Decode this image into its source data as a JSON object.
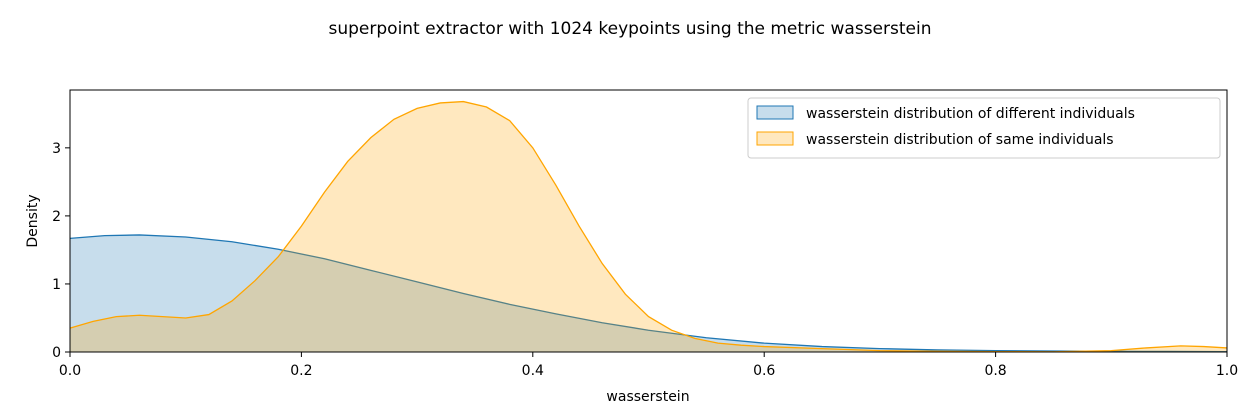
{
  "chart_data": {
    "type": "area",
    "title": "superpoint extractor with 1024 keypoints using the metric wasserstein",
    "xlabel": "wasserstein",
    "ylabel": "Density",
    "xlim": [
      0.0,
      1.0
    ],
    "ylim": [
      0.0,
      3.85
    ],
    "x_ticks": [
      "0.0",
      "0.2",
      "0.4",
      "0.6",
      "0.8",
      "1.0"
    ],
    "y_ticks": [
      "0",
      "1",
      "2",
      "3"
    ],
    "grid": false,
    "legend_position": "top-right",
    "series": [
      {
        "name": "wasserstein distribution of different individuals",
        "color": "#1f77b4",
        "x": [
          0.0,
          0.03,
          0.06,
          0.1,
          0.14,
          0.18,
          0.22,
          0.26,
          0.3,
          0.34,
          0.38,
          0.42,
          0.46,
          0.5,
          0.55,
          0.6,
          0.65,
          0.7,
          0.75,
          0.8,
          0.85,
          0.9,
          0.95,
          1.0
        ],
        "y": [
          1.67,
          1.71,
          1.72,
          1.69,
          1.62,
          1.51,
          1.37,
          1.2,
          1.03,
          0.86,
          0.7,
          0.56,
          0.43,
          0.32,
          0.21,
          0.13,
          0.08,
          0.05,
          0.03,
          0.02,
          0.015,
          0.01,
          0.008,
          0.005
        ]
      },
      {
        "name": "wasserstein distribution of same individuals",
        "color": "#ffa500",
        "x": [
          0.0,
          0.02,
          0.04,
          0.06,
          0.08,
          0.1,
          0.12,
          0.14,
          0.16,
          0.18,
          0.2,
          0.22,
          0.24,
          0.26,
          0.28,
          0.3,
          0.32,
          0.34,
          0.36,
          0.38,
          0.4,
          0.42,
          0.44,
          0.46,
          0.48,
          0.5,
          0.52,
          0.54,
          0.56,
          0.58,
          0.6,
          0.65,
          0.7,
          0.75,
          0.8,
          0.85,
          0.9,
          0.93,
          0.96,
          0.98,
          1.0
        ],
        "y": [
          0.35,
          0.45,
          0.52,
          0.54,
          0.52,
          0.5,
          0.55,
          0.75,
          1.05,
          1.4,
          1.85,
          2.35,
          2.8,
          3.15,
          3.42,
          3.58,
          3.66,
          3.68,
          3.6,
          3.4,
          3.0,
          2.45,
          1.85,
          1.3,
          0.85,
          0.52,
          0.32,
          0.2,
          0.13,
          0.1,
          0.08,
          0.05,
          0.02,
          0.01,
          0.005,
          0.003,
          0.02,
          0.06,
          0.09,
          0.08,
          0.06
        ]
      }
    ]
  }
}
